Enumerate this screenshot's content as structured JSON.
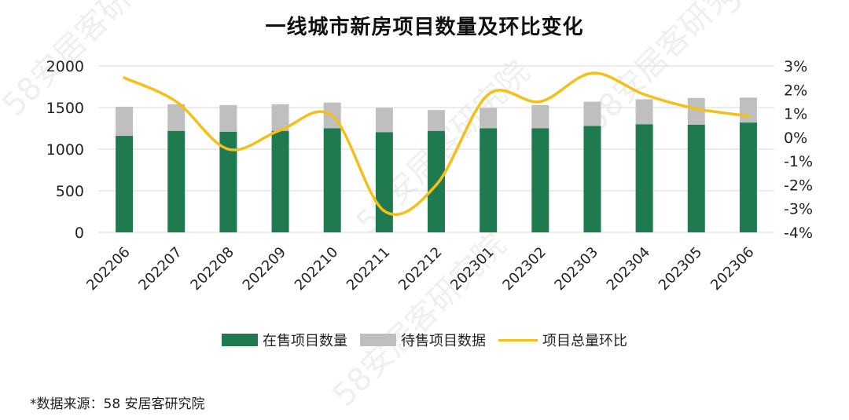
{
  "colors": {
    "on_sale": "#1f7a4f",
    "pending": "#bfbfbf",
    "ratio_line": "#f5bf1a",
    "grid": "#d9d9d9"
  },
  "chart_data": {
    "type": "bar",
    "title": "一线城市新房项目数量及环比变化",
    "categories": [
      "202206",
      "202207",
      "202208",
      "202209",
      "202210",
      "202211",
      "202212",
      "202301",
      "202302",
      "202303",
      "202304",
      "202305",
      "202306"
    ],
    "series": [
      {
        "name": "在售项目数量",
        "type": "bar",
        "stacked": true,
        "axis": "left",
        "values": [
          1160,
          1220,
          1210,
          1220,
          1250,
          1205,
          1220,
          1250,
          1250,
          1280,
          1300,
          1295,
          1320
        ]
      },
      {
        "name": "待售项目数据",
        "type": "bar",
        "stacked": true,
        "axis": "left",
        "values": [
          350,
          320,
          320,
          320,
          310,
          290,
          250,
          245,
          280,
          290,
          300,
          320,
          300
        ]
      },
      {
        "name": "项目总量环比",
        "type": "line",
        "axis": "right",
        "unit": "%",
        "values": [
          2.5,
          1.5,
          -0.5,
          0.3,
          0.9,
          -3.1,
          -2.0,
          1.8,
          1.5,
          2.7,
          1.8,
          1.2,
          0.9
        ]
      }
    ],
    "y_left": {
      "ylim": [
        0,
        2000
      ],
      "ticks": [
        "0",
        "500",
        "1000",
        "1500",
        "2000"
      ]
    },
    "y_right": {
      "ylim": [
        -4,
        3
      ],
      "ticks": [
        "3%",
        "2%",
        "1%",
        "0%",
        "-1%",
        "-2%",
        "-3%",
        "-4%"
      ]
    },
    "grid": true,
    "legend_position": "bottom"
  },
  "legend": {
    "on_sale": "在售项目数量",
    "pending": "待售项目数据",
    "ratio": "项目总量环比"
  },
  "source_note": "*数据来源：58 安居客研究院",
  "watermark": "58安居客研究院"
}
